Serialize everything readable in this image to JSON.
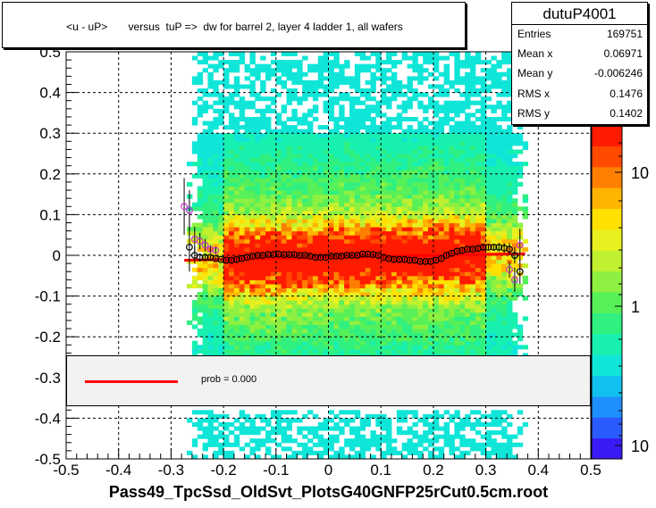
{
  "chart_data": {
    "type": "scatter",
    "title": "<u - uP>       versus  tuP =>  dw for barrel 2, layer 4 ladder 1, all wafers",
    "xlabel": "Pass49_TpcSsd_OldSvt_PlotsG40GNFP25rCut0.5cm.root",
    "ylabel": "",
    "xlim": [
      -0.5,
      0.5
    ],
    "ylim": [
      -0.5,
      0.5
    ],
    "x_ticks": [
      "-0.5",
      "-0.4",
      "-0.3",
      "-0.2",
      "-0.1",
      "0",
      "0.1",
      "0.2",
      "0.3",
      "0.4",
      "0.5"
    ],
    "y_ticks": [
      "-0.5",
      "-0.4",
      "-0.3",
      "-0.2",
      "-0.1",
      "0",
      "0.1",
      "0.2",
      "0.3",
      "0.4",
      "0.5"
    ],
    "grid": true,
    "colorbar": {
      "scale": "log",
      "tick_labels": [
        "10",
        "1",
        "10"
      ]
    },
    "stats": {
      "name": "dutuP4001",
      "rows": [
        {
          "label": "Entries",
          "value": "169751"
        },
        {
          "label": "Mean x",
          "value": "0.06971"
        },
        {
          "label": "Mean y",
          "value": "-0.006246"
        },
        {
          "label": "RMS x",
          "value": "0.1476"
        },
        {
          "label": "RMS y",
          "value": "0.1402"
        }
      ]
    },
    "legend": {
      "label": "prob = 0.000",
      "color": "#ff0000",
      "placement": "bottom-center"
    },
    "profile_black": {
      "x": [
        -0.265,
        -0.255,
        -0.245,
        -0.235,
        -0.225,
        -0.215,
        -0.205,
        -0.195,
        -0.185,
        -0.175,
        -0.165,
        -0.155,
        -0.145,
        -0.135,
        -0.125,
        -0.115,
        -0.105,
        -0.095,
        -0.085,
        -0.075,
        -0.065,
        -0.055,
        -0.045,
        -0.035,
        -0.025,
        -0.015,
        -0.005,
        0.005,
        0.015,
        0.025,
        0.035,
        0.045,
        0.055,
        0.065,
        0.075,
        0.085,
        0.095,
        0.105,
        0.115,
        0.125,
        0.135,
        0.145,
        0.155,
        0.165,
        0.175,
        0.185,
        0.195,
        0.205,
        0.215,
        0.225,
        0.235,
        0.245,
        0.255,
        0.265,
        0.275,
        0.285,
        0.295,
        0.305,
        0.315,
        0.325,
        0.335,
        0.345,
        0.355,
        0.365
      ],
      "y": [
        0.02,
        0.0,
        -0.005,
        -0.005,
        -0.005,
        -0.008,
        -0.01,
        -0.012,
        -0.012,
        -0.01,
        -0.008,
        -0.005,
        -0.002,
        0.0,
        0.0,
        0.002,
        0.002,
        0.003,
        0.002,
        0.002,
        0.002,
        0.0,
        0.0,
        -0.002,
        -0.005,
        -0.005,
        -0.005,
        -0.002,
        -0.002,
        -0.002,
        0.0,
        0.0,
        0.0,
        0.003,
        0.003,
        0.002,
        0.0,
        -0.005,
        -0.008,
        -0.01,
        -0.01,
        -0.01,
        -0.012,
        -0.012,
        -0.015,
        -0.015,
        -0.015,
        -0.012,
        -0.008,
        0.0,
        0.005,
        0.01,
        0.012,
        0.015,
        0.015,
        0.017,
        0.02,
        0.02,
        0.02,
        0.02,
        0.018,
        0.015,
        0.0,
        -0.04
      ],
      "err": [
        0.06,
        0.02,
        0.01,
        0.006,
        0.005,
        0.004,
        0.004,
        0.004,
        0.004,
        0.004,
        0.004,
        0.004,
        0.004,
        0.004,
        0.004,
        0.004,
        0.004,
        0.004,
        0.004,
        0.004,
        0.004,
        0.004,
        0.004,
        0.004,
        0.004,
        0.004,
        0.004,
        0.004,
        0.004,
        0.004,
        0.004,
        0.004,
        0.004,
        0.004,
        0.004,
        0.004,
        0.004,
        0.004,
        0.004,
        0.004,
        0.004,
        0.004,
        0.004,
        0.004,
        0.004,
        0.004,
        0.004,
        0.004,
        0.004,
        0.004,
        0.004,
        0.004,
        0.004,
        0.004,
        0.004,
        0.005,
        0.006,
        0.006,
        0.008,
        0.01,
        0.012,
        0.015,
        0.02,
        0.03
      ]
    },
    "profile_magenta": {
      "x": [
        -0.275,
        -0.265,
        -0.255,
        -0.245,
        -0.235,
        -0.225,
        -0.215,
        0.345,
        0.355,
        0.365
      ],
      "y": [
        0.12,
        0.11,
        0.04,
        0.035,
        0.025,
        0.015,
        0.012,
        -0.035,
        -0.06,
        0.025
      ],
      "err": [
        0.07,
        0.05,
        0.03,
        0.02,
        0.015,
        0.01,
        0.01,
        0.02,
        0.03,
        0.04
      ]
    },
    "fit_line": {
      "x": [
        -0.275,
        0.375
      ],
      "y": [
        -0.012,
        0.004
      ],
      "color": "#ff0000"
    }
  }
}
